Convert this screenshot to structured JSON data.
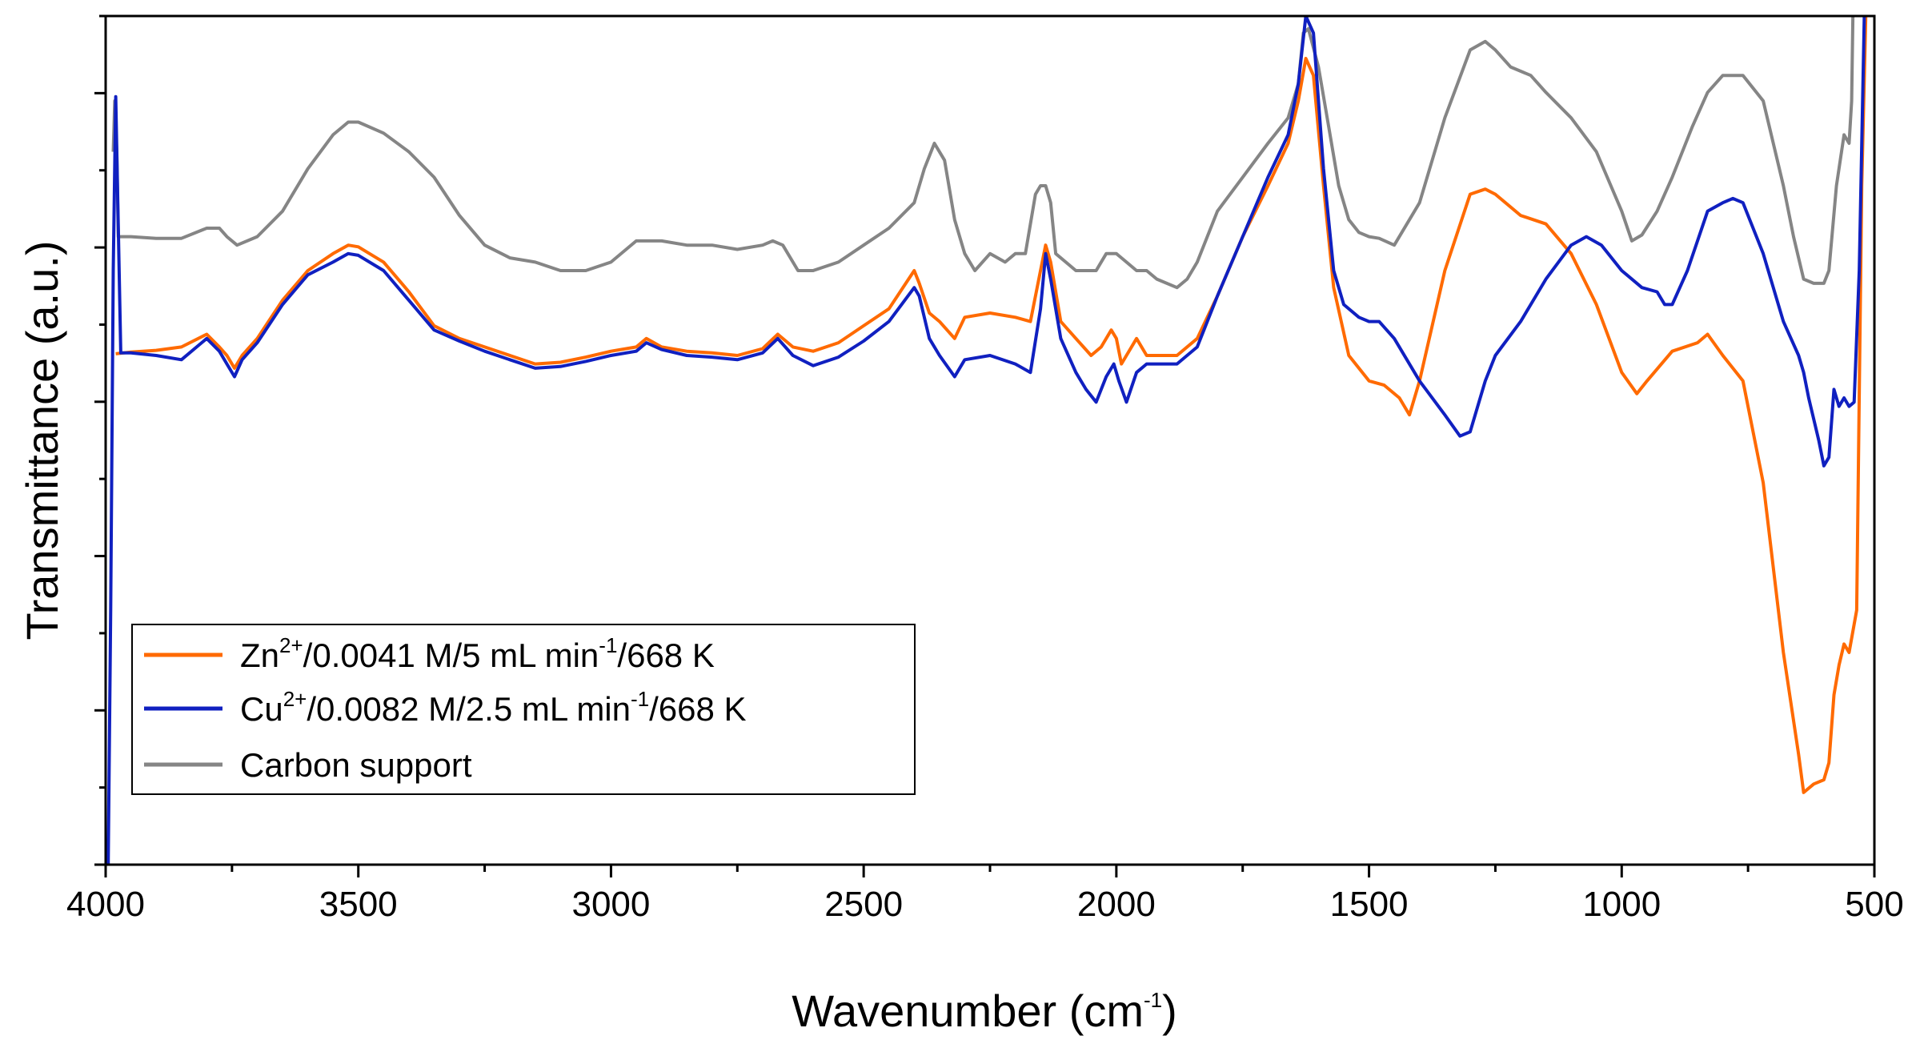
{
  "chart_data": {
    "type": "line",
    "title": "",
    "xlabel_main": "Wavenumber (cm",
    "xlabel_sup": "-1",
    "xlabel_end": ")",
    "ylabel": "Transmittance (a.u.)",
    "xlim": [
      4000,
      500
    ],
    "ylim": [
      0,
      1
    ],
    "x_ticks": [
      "4000",
      "3500",
      "3000",
      "2500",
      "2000",
      "1500",
      "1000",
      "500"
    ],
    "legend_position": "bottom-left",
    "series": [
      {
        "name": "Zn2+/0.0041 M/5 mL min-1/668 K",
        "legend_parts": [
          "Zn",
          "2+",
          "/0.0041 M/5 mL min",
          "-1",
          "/668 K"
        ],
        "color": "#ff6a00",
        "x": [
          3980,
          3950,
          3900,
          3850,
          3800,
          3775,
          3760,
          3745,
          3730,
          3700,
          3650,
          3600,
          3550,
          3520,
          3500,
          3450,
          3400,
          3350,
          3300,
          3250,
          3200,
          3150,
          3100,
          3050,
          3000,
          2950,
          2930,
          2900,
          2850,
          2800,
          2750,
          2700,
          2670,
          2640,
          2600,
          2550,
          2500,
          2450,
          2400,
          2390,
          2370,
          2350,
          2320,
          2300,
          2250,
          2200,
          2170,
          2150,
          2140,
          2130,
          2110,
          2080,
          2050,
          2030,
          2010,
          2000,
          1990,
          1980,
          1960,
          1940,
          1920,
          1880,
          1840,
          1800,
          1750,
          1700,
          1660,
          1640,
          1625,
          1610,
          1590,
          1570,
          1540,
          1500,
          1470,
          1440,
          1420,
          1400,
          1350,
          1300,
          1270,
          1250,
          1200,
          1150,
          1100,
          1050,
          1000,
          970,
          950,
          900,
          850,
          830,
          800,
          760,
          720,
          680,
          650,
          640,
          620,
          600,
          590,
          580,
          570,
          560,
          550,
          535,
          525,
          515
        ],
        "y": [
          0.602,
          0.604,
          0.606,
          0.61,
          0.625,
          0.61,
          0.6,
          0.585,
          0.6,
          0.62,
          0.665,
          0.7,
          0.72,
          0.73,
          0.728,
          0.71,
          0.675,
          0.635,
          0.62,
          0.61,
          0.6,
          0.59,
          0.592,
          0.598,
          0.605,
          0.61,
          0.62,
          0.61,
          0.605,
          0.603,
          0.6,
          0.608,
          0.625,
          0.61,
          0.605,
          0.615,
          0.635,
          0.655,
          0.7,
          0.685,
          0.65,
          0.64,
          0.62,
          0.645,
          0.65,
          0.645,
          0.64,
          0.7,
          0.73,
          0.71,
          0.64,
          0.62,
          0.6,
          0.61,
          0.63,
          0.62,
          0.59,
          0.6,
          0.62,
          0.6,
          0.6,
          0.6,
          0.62,
          0.67,
          0.74,
          0.8,
          0.85,
          0.9,
          0.95,
          0.93,
          0.8,
          0.68,
          0.6,
          0.57,
          0.565,
          0.55,
          0.53,
          0.57,
          0.7,
          0.79,
          0.796,
          0.79,
          0.765,
          0.755,
          0.72,
          0.66,
          0.58,
          0.555,
          0.57,
          0.605,
          0.615,
          0.625,
          0.6,
          0.57,
          0.45,
          0.25,
          0.13,
          0.085,
          0.095,
          0.1,
          0.12,
          0.2,
          0.235,
          0.26,
          0.25,
          0.3,
          0.8,
          1.05
        ]
      },
      {
        "name": "Cu2+/0.0082 M/2.5 mL min-1/668 K",
        "legend_parts": [
          "Cu",
          "2+",
          "/0.0082 M/2.5 mL min",
          "-1",
          "/668 K"
        ],
        "color": "#1020c0",
        "x": [
          3995,
          3990,
          3985,
          3980,
          3970,
          3950,
          3900,
          3850,
          3800,
          3775,
          3760,
          3745,
          3730,
          3700,
          3650,
          3600,
          3550,
          3520,
          3500,
          3450,
          3400,
          3350,
          3300,
          3250,
          3200,
          3150,
          3100,
          3050,
          3000,
          2950,
          2930,
          2900,
          2850,
          2800,
          2750,
          2700,
          2670,
          2640,
          2600,
          2550,
          2500,
          2450,
          2400,
          2390,
          2370,
          2350,
          2320,
          2300,
          2250,
          2200,
          2170,
          2150,
          2140,
          2130,
          2110,
          2080,
          2060,
          2040,
          2020,
          2005,
          1995,
          1980,
          1960,
          1940,
          1920,
          1880,
          1840,
          1800,
          1750,
          1700,
          1660,
          1640,
          1625,
          1610,
          1590,
          1570,
          1550,
          1520,
          1500,
          1480,
          1450,
          1400,
          1350,
          1320,
          1300,
          1270,
          1250,
          1200,
          1150,
          1100,
          1070,
          1040,
          1000,
          960,
          930,
          915,
          900,
          870,
          830,
          800,
          780,
          760,
          720,
          680,
          650,
          640,
          630,
          610,
          600,
          590,
          580,
          570,
          560,
          550,
          540,
          530,
          520,
          515
        ],
        "y": [
          0.0,
          0.3,
          0.7,
          0.905,
          0.603,
          0.603,
          0.6,
          0.595,
          0.62,
          0.605,
          0.59,
          0.575,
          0.595,
          0.615,
          0.66,
          0.695,
          0.71,
          0.72,
          0.718,
          0.7,
          0.665,
          0.63,
          0.617,
          0.605,
          0.595,
          0.585,
          0.587,
          0.593,
          0.6,
          0.605,
          0.615,
          0.607,
          0.6,
          0.598,
          0.595,
          0.603,
          0.62,
          0.6,
          0.588,
          0.598,
          0.617,
          0.64,
          0.68,
          0.67,
          0.62,
          0.6,
          0.575,
          0.595,
          0.6,
          0.59,
          0.58,
          0.655,
          0.72,
          0.69,
          0.62,
          0.58,
          0.56,
          0.545,
          0.575,
          0.59,
          0.57,
          0.545,
          0.58,
          0.59,
          0.59,
          0.59,
          0.61,
          0.67,
          0.74,
          0.81,
          0.86,
          0.92,
          1.0,
          0.98,
          0.82,
          0.7,
          0.66,
          0.645,
          0.64,
          0.64,
          0.62,
          0.57,
          0.53,
          0.505,
          0.51,
          0.57,
          0.6,
          0.64,
          0.69,
          0.73,
          0.74,
          0.73,
          0.7,
          0.68,
          0.675,
          0.66,
          0.66,
          0.7,
          0.77,
          0.78,
          0.785,
          0.78,
          0.72,
          0.64,
          0.6,
          0.58,
          0.55,
          0.5,
          0.47,
          0.48,
          0.56,
          0.54,
          0.55,
          0.54,
          0.545,
          0.7,
          1.0,
          1.06
        ]
      },
      {
        "name": "Carbon support",
        "legend_parts": [
          "Carbon support",
          "",
          "",
          "",
          ""
        ],
        "color": "#858585",
        "x": [
          3985,
          3982,
          3978,
          3975,
          3970,
          3950,
          3900,
          3850,
          3800,
          3775,
          3760,
          3740,
          3700,
          3650,
          3600,
          3550,
          3520,
          3500,
          3450,
          3400,
          3350,
          3300,
          3250,
          3200,
          3150,
          3100,
          3050,
          3000,
          2950,
          2900,
          2850,
          2800,
          2750,
          2700,
          2680,
          2660,
          2630,
          2600,
          2550,
          2500,
          2450,
          2400,
          2380,
          2360,
          2340,
          2320,
          2300,
          2280,
          2250,
          2220,
          2200,
          2180,
          2160,
          2150,
          2140,
          2130,
          2120,
          2100,
          2080,
          2060,
          2040,
          2020,
          2000,
          1980,
          1960,
          1940,
          1920,
          1880,
          1860,
          1840,
          1800,
          1750,
          1700,
          1660,
          1640,
          1630,
          1620,
          1600,
          1580,
          1560,
          1540,
          1520,
          1500,
          1480,
          1450,
          1400,
          1350,
          1300,
          1270,
          1250,
          1220,
          1180,
          1150,
          1100,
          1050,
          1000,
          980,
          960,
          930,
          900,
          860,
          830,
          800,
          760,
          720,
          680,
          660,
          640,
          620,
          600,
          590,
          575,
          560,
          550,
          545,
          540
        ],
        "y": [
          0.84,
          0.9,
          0.84,
          0.74,
          0.74,
          0.74,
          0.738,
          0.738,
          0.75,
          0.75,
          0.74,
          0.73,
          0.74,
          0.77,
          0.82,
          0.86,
          0.875,
          0.875,
          0.862,
          0.84,
          0.81,
          0.765,
          0.73,
          0.715,
          0.71,
          0.7,
          0.7,
          0.71,
          0.735,
          0.735,
          0.73,
          0.73,
          0.725,
          0.73,
          0.735,
          0.73,
          0.7,
          0.7,
          0.71,
          0.73,
          0.75,
          0.78,
          0.82,
          0.85,
          0.83,
          0.76,
          0.72,
          0.7,
          0.72,
          0.71,
          0.72,
          0.72,
          0.79,
          0.8,
          0.8,
          0.78,
          0.72,
          0.71,
          0.7,
          0.7,
          0.7,
          0.72,
          0.72,
          0.71,
          0.7,
          0.7,
          0.69,
          0.68,
          0.69,
          0.71,
          0.77,
          0.81,
          0.85,
          0.88,
          0.92,
          0.98,
          0.985,
          0.94,
          0.87,
          0.8,
          0.76,
          0.745,
          0.74,
          0.738,
          0.73,
          0.78,
          0.88,
          0.96,
          0.97,
          0.96,
          0.94,
          0.93,
          0.91,
          0.88,
          0.84,
          0.77,
          0.735,
          0.742,
          0.77,
          0.81,
          0.87,
          0.91,
          0.93,
          0.93,
          0.9,
          0.8,
          0.74,
          0.69,
          0.685,
          0.685,
          0.7,
          0.8,
          0.86,
          0.85,
          0.9,
          1.1
        ]
      }
    ]
  }
}
